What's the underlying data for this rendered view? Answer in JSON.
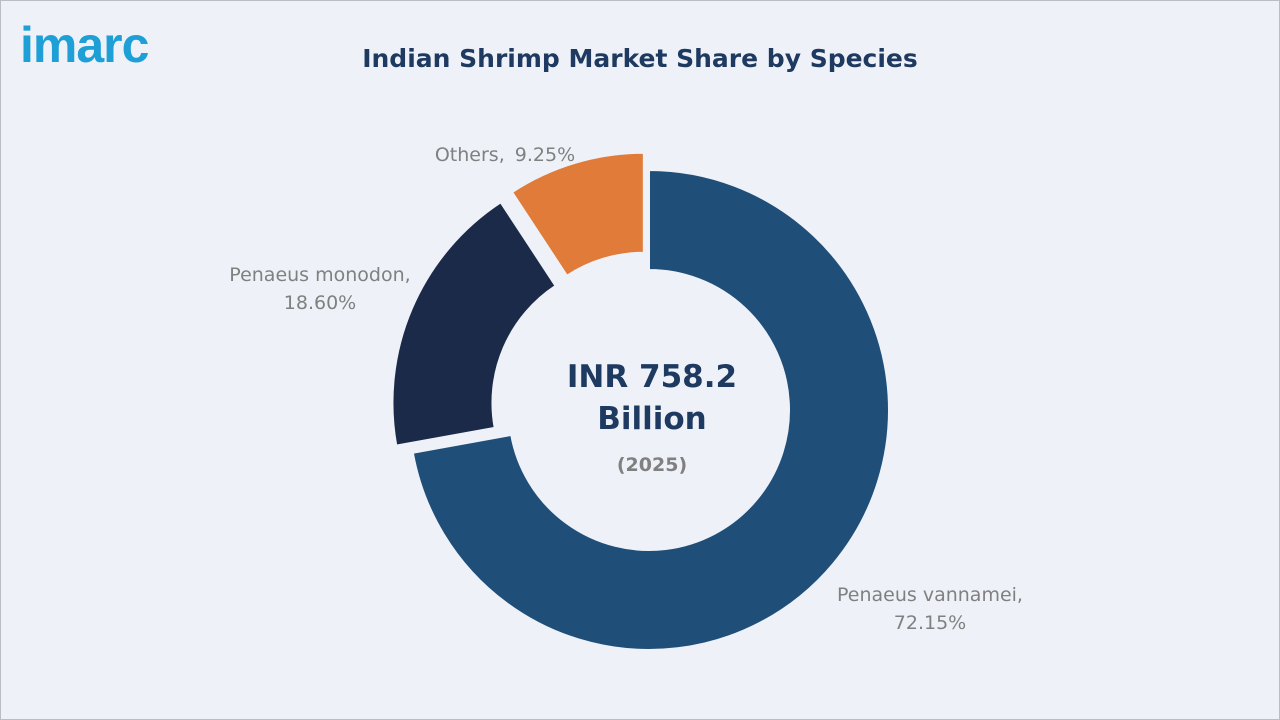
{
  "logo": {
    "text": "imarc"
  },
  "chart_data": {
    "type": "pie",
    "title": "Indian Shrimp Market Share by Species",
    "center": {
      "value": "INR 758.2",
      "unit": "Billion",
      "year": "(2025)"
    },
    "slices": [
      {
        "name": "Penaeus vannamei,",
        "value_label": "72.15%",
        "value": 72.15,
        "color": "#1f4e79"
      },
      {
        "name": "Penaeus monodon,",
        "value_label": "18.60%",
        "value": 18.6,
        "color": "#1c2a4a"
      },
      {
        "name": "Others,",
        "value_label": "9.25%",
        "value": 9.25,
        "color": "#e07b39"
      }
    ]
  }
}
